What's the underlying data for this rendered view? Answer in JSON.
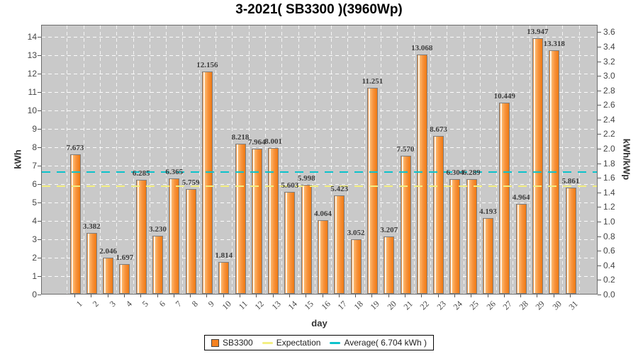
{
  "window": {
    "title": "3-2021( SB3300 )(3960Wp)"
  },
  "chart_data": {
    "type": "bar",
    "title": "3-2021( SB3300 )(3960Wp)",
    "xlabel": "day",
    "ylabel_left": "kWh",
    "ylabel_right": "kWh/kWp",
    "ylim_left": [
      0,
      14.65
    ],
    "ylim_right": [
      0,
      3.7
    ],
    "yticks_left": [
      0,
      1,
      2,
      3,
      4,
      5,
      6,
      7,
      8,
      9,
      10,
      11,
      12,
      13,
      14
    ],
    "yticks_right": [
      0,
      0.2,
      0.4,
      0.6,
      0.8,
      1.0,
      1.2,
      1.4,
      1.6,
      1.8,
      2.0,
      2.2,
      2.4,
      2.6,
      2.8,
      3.0,
      3.2,
      3.4,
      3.6
    ],
    "categories": [
      1,
      2,
      3,
      4,
      5,
      6,
      7,
      8,
      9,
      10,
      11,
      12,
      13,
      14,
      15,
      16,
      17,
      18,
      19,
      20,
      21,
      22,
      23,
      24,
      25,
      26,
      27,
      28,
      29,
      30,
      31
    ],
    "series": [
      {
        "name": "SB3300",
        "color": "#f58220",
        "values": [
          7.673,
          3.382,
          2.046,
          1.697,
          6.285,
          3.23,
          6.365,
          5.759,
          12.156,
          1.814,
          8.218,
          7.964,
          8.001,
          5.603,
          5.998,
          4.064,
          5.423,
          3.052,
          11.251,
          3.207,
          7.57,
          13.068,
          8.673,
          6.304,
          6.289,
          4.193,
          10.449,
          4.964,
          13.947,
          13.318,
          5.861
        ]
      }
    ],
    "lines": [
      {
        "name": "Expectation",
        "value": 5.94,
        "color": "#f3ef82"
      },
      {
        "name": "Average( 6.704 kWh )",
        "value": 6.704,
        "color": "#0cc2cb"
      }
    ],
    "grid": true,
    "legend_position": "bottom",
    "plot_background": "#c9c9c9"
  },
  "legend": {
    "items": [
      {
        "label": "SB3300",
        "swatch": "square",
        "color": "#f58220"
      },
      {
        "label": "Expectation",
        "swatch": "line",
        "color": "#f3ef82"
      },
      {
        "label": "Average( 6.704 kWh )",
        "swatch": "line",
        "color": "#0cc2cb"
      }
    ]
  }
}
